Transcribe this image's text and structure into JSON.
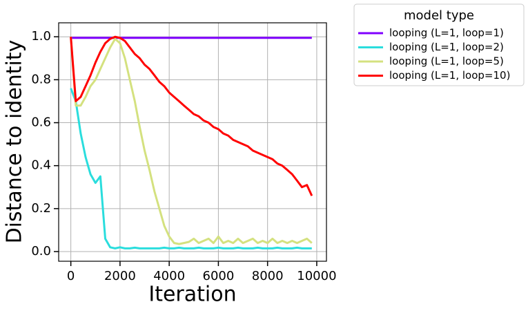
{
  "chart_data": {
    "type": "line",
    "x_label": "Iteration",
    "y_label": "Distance to identity",
    "legend_title": "model type",
    "legend": "outside-upper-right",
    "grid": true,
    "x": [
      0,
      200,
      400,
      600,
      800,
      1000,
      1200,
      1400,
      1600,
      1800,
      2000,
      2200,
      2400,
      2600,
      2800,
      3000,
      3200,
      3400,
      3600,
      3800,
      4000,
      4200,
      4400,
      4600,
      4800,
      5000,
      5200,
      5400,
      5600,
      5800,
      6000,
      6200,
      6400,
      6600,
      6800,
      7000,
      7200,
      7400,
      7600,
      7800,
      8000,
      8200,
      8400,
      8600,
      8800,
      9000,
      9200,
      9400,
      9600,
      9800
    ],
    "xlim": [
      -495,
      10395
    ],
    "xticks": [
      0,
      2000,
      4000,
      6000,
      8000,
      10000
    ],
    "ylim": [
      -0.045,
      1.065
    ],
    "yticks": [
      {
        "value": 0,
        "label": "0.0"
      },
      0.2,
      0.4,
      0.6,
      0.8,
      {
        "value": 1,
        "label": "1.0"
      }
    ],
    "series": [
      {
        "name": "looping (L=1, loop=1)",
        "color": "#8000ff",
        "values": [
          0.995,
          0.995,
          0.995,
          0.995,
          0.995,
          0.995,
          0.995,
          0.995,
          0.995,
          0.995,
          0.995,
          0.995,
          0.995,
          0.995,
          0.995,
          0.995,
          0.995,
          0.995,
          0.995,
          0.995,
          0.995,
          0.995,
          0.995,
          0.995,
          0.995,
          0.995,
          0.995,
          0.995,
          0.995,
          0.995,
          0.995,
          0.995,
          0.995,
          0.995,
          0.995,
          0.995,
          0.995,
          0.995,
          0.995,
          0.995,
          0.995,
          0.995,
          0.995,
          0.995,
          0.995,
          0.995,
          0.995,
          0.995,
          0.995,
          0.995
        ]
      },
      {
        "name": "looping (L=1, loop=2)",
        "color": "#2adddd",
        "values": [
          0.76,
          0.7,
          0.55,
          0.44,
          0.36,
          0.32,
          0.35,
          0.06,
          0.02,
          0.015,
          0.02,
          0.015,
          0.015,
          0.018,
          0.015,
          0.015,
          0.015,
          0.015,
          0.015,
          0.018,
          0.015,
          0.015,
          0.018,
          0.015,
          0.015,
          0.015,
          0.018,
          0.015,
          0.015,
          0.015,
          0.018,
          0.015,
          0.015,
          0.015,
          0.018,
          0.015,
          0.015,
          0.015,
          0.018,
          0.015,
          0.015,
          0.015,
          0.018,
          0.015,
          0.015,
          0.015,
          0.018,
          0.015,
          0.015,
          0.015
        ]
      },
      {
        "name": "looping (L=1, loop=5)",
        "color": "#d4e17f",
        "values": [
          1.0,
          0.68,
          0.68,
          0.72,
          0.77,
          0.8,
          0.85,
          0.9,
          0.95,
          0.99,
          0.97,
          0.9,
          0.8,
          0.7,
          0.58,
          0.47,
          0.38,
          0.28,
          0.2,
          0.12,
          0.07,
          0.04,
          0.035,
          0.04,
          0.045,
          0.06,
          0.04,
          0.05,
          0.06,
          0.04,
          0.07,
          0.04,
          0.05,
          0.04,
          0.06,
          0.04,
          0.05,
          0.06,
          0.04,
          0.05,
          0.04,
          0.06,
          0.04,
          0.05,
          0.04,
          0.05,
          0.04,
          0.05,
          0.06,
          0.04
        ]
      },
      {
        "name": "looping (L=1, loop=10)",
        "color": "#ff0000",
        "values": [
          1.0,
          0.7,
          0.72,
          0.77,
          0.82,
          0.88,
          0.93,
          0.97,
          0.99,
          1.0,
          0.995,
          0.98,
          0.95,
          0.92,
          0.9,
          0.87,
          0.85,
          0.82,
          0.79,
          0.77,
          0.74,
          0.72,
          0.7,
          0.68,
          0.66,
          0.64,
          0.63,
          0.61,
          0.6,
          0.58,
          0.57,
          0.55,
          0.54,
          0.52,
          0.51,
          0.5,
          0.49,
          0.47,
          0.46,
          0.45,
          0.44,
          0.43,
          0.41,
          0.4,
          0.38,
          0.36,
          0.33,
          0.3,
          0.31,
          0.26
        ]
      }
    ]
  }
}
